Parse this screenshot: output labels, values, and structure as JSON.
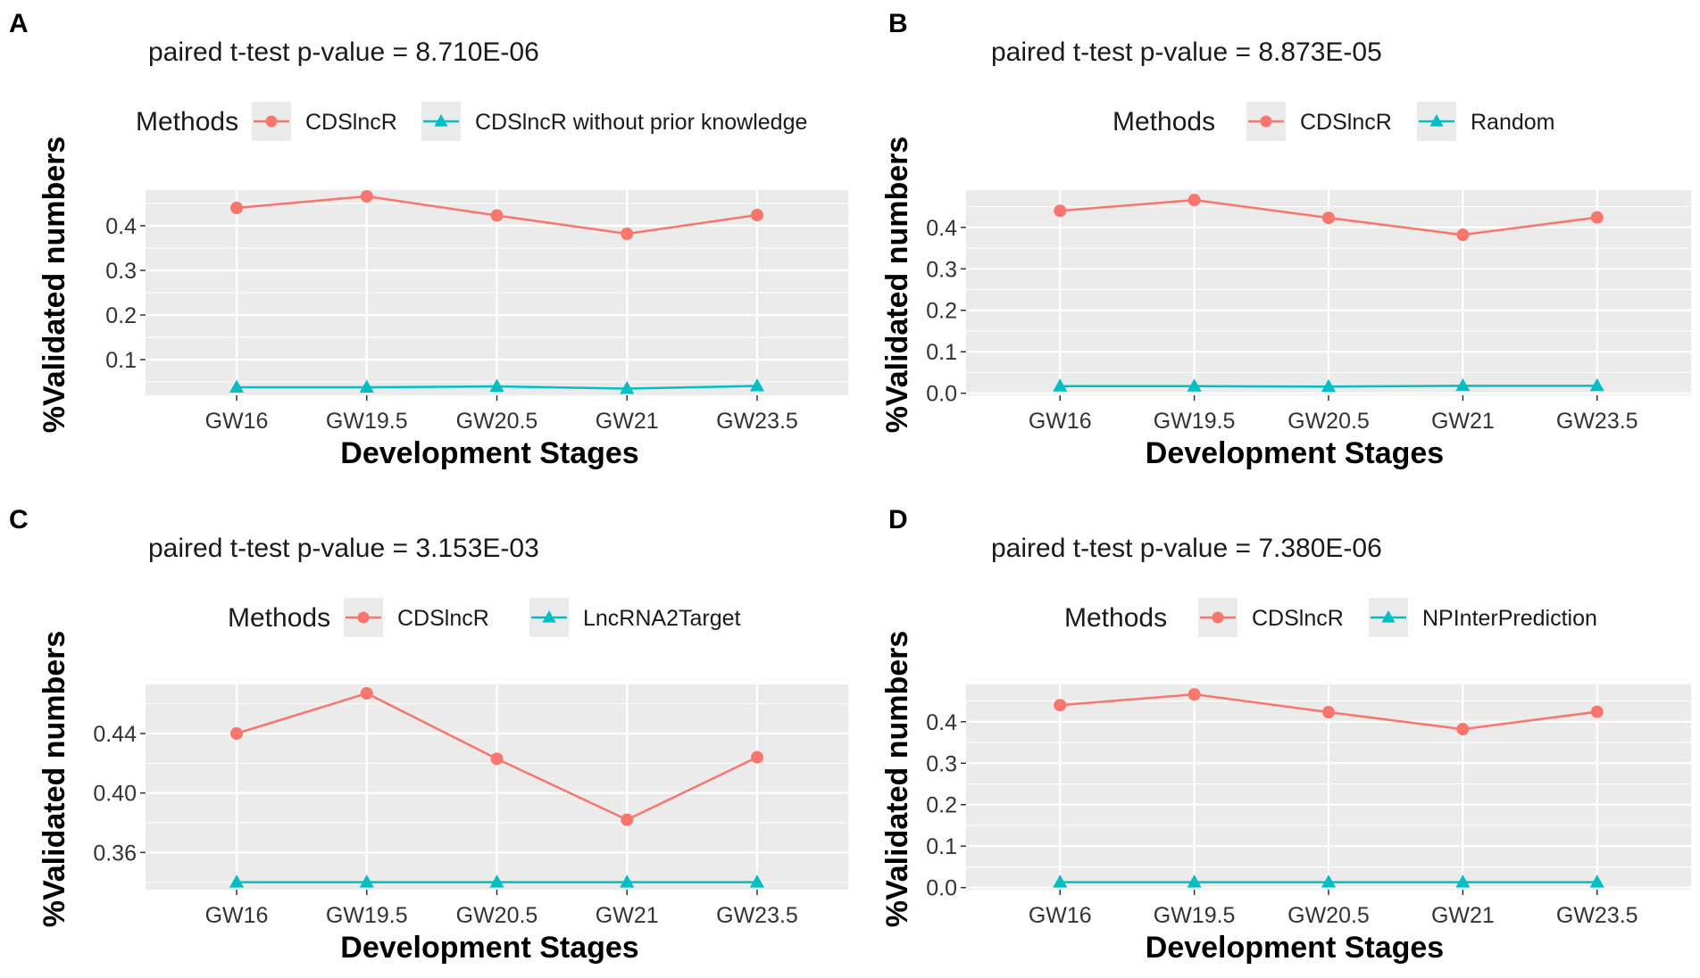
{
  "figure": {
    "xlabel": "Development Stages",
    "ylabel": "%Validated numbers",
    "legend_title": "Methods",
    "colors": {
      "primary": "#f8766d",
      "secondary": "#00bfc4",
      "panel_bg": "#ebebeb",
      "grid": "#ffffff"
    }
  },
  "chart_data": [
    {
      "panel": "A",
      "type": "line",
      "title": "paired t-test p-value = 8.710E-06",
      "categories": [
        "GW16",
        "GW19.5",
        "GW20.5",
        "GW21",
        "GW23.5"
      ],
      "series": [
        {
          "name": "CDSlncR",
          "marker": "circle",
          "values": [
            0.44,
            0.466,
            0.423,
            0.382,
            0.424
          ]
        },
        {
          "name": "CDSlncR without prior knowledge",
          "marker": "triangle",
          "values": [
            0.038,
            0.038,
            0.04,
            0.035,
            0.041
          ]
        }
      ],
      "ylim": [
        0.02,
        0.48
      ],
      "yticks": [
        0.1,
        0.2,
        0.3,
        0.4
      ],
      "ytick_labels": [
        "0.1",
        "0.2",
        "0.3",
        "0.4"
      ]
    },
    {
      "panel": "B",
      "type": "line",
      "title": "paired t-test p-value = 8.873E-05",
      "categories": [
        "GW16",
        "GW19.5",
        "GW20.5",
        "GW21",
        "GW23.5"
      ],
      "series": [
        {
          "name": "CDSlncR",
          "marker": "circle",
          "values": [
            0.44,
            0.466,
            0.423,
            0.382,
            0.424
          ]
        },
        {
          "name": "Random",
          "marker": "triangle",
          "values": [
            0.017,
            0.017,
            0.016,
            0.018,
            0.018
          ]
        }
      ],
      "ylim": [
        -0.005,
        0.49
      ],
      "yticks": [
        0.0,
        0.1,
        0.2,
        0.3,
        0.4
      ],
      "ytick_labels": [
        "0.0",
        "0.1",
        "0.2",
        "0.3",
        "0.4"
      ]
    },
    {
      "panel": "C",
      "type": "line",
      "title": "paired t-test p-value = 3.153E-03",
      "categories": [
        "GW16",
        "GW19.5",
        "GW20.5",
        "GW21",
        "GW23.5"
      ],
      "series": [
        {
          "name": "CDSlncR",
          "marker": "circle",
          "values": [
            0.44,
            0.467,
            0.423,
            0.382,
            0.424
          ]
        },
        {
          "name": "LncRNA2Target",
          "marker": "triangle",
          "values": [
            0.34,
            0.34,
            0.34,
            0.34,
            0.34
          ]
        }
      ],
      "ylim": [
        0.335,
        0.473
      ],
      "yticks": [
        0.36,
        0.4,
        0.44
      ],
      "ytick_labels": [
        "0.36",
        "0.40",
        "0.44"
      ]
    },
    {
      "panel": "D",
      "type": "line",
      "title": "paired t-test p-value = 7.380E-06",
      "categories": [
        "GW16",
        "GW19.5",
        "GW20.5",
        "GW21",
        "GW23.5"
      ],
      "series": [
        {
          "name": "CDSlncR",
          "marker": "circle",
          "values": [
            0.44,
            0.466,
            0.423,
            0.382,
            0.424
          ]
        },
        {
          "name": "NPInterPrediction",
          "marker": "triangle",
          "values": [
            0.013,
            0.013,
            0.013,
            0.013,
            0.013
          ]
        }
      ],
      "ylim": [
        -0.005,
        0.49
      ],
      "yticks": [
        0.0,
        0.1,
        0.2,
        0.3,
        0.4
      ],
      "ytick_labels": [
        "0.0",
        "0.1",
        "0.2",
        "0.3",
        "0.4"
      ]
    }
  ]
}
